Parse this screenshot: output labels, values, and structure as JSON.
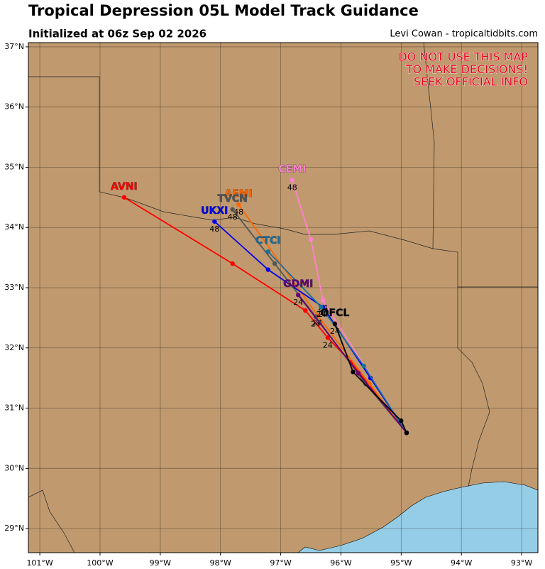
{
  "chart_data": {
    "type": "line",
    "title": "Tropical Depression 05L Model Track Guidance",
    "subtitle": "Initialized at 06z Sep 02 2026",
    "credit": "Levi Cowan - tropicaltidbits.com",
    "warning": [
      "DO NOT USE THIS MAP",
      "TO MAKE DECISIONS!",
      "SEEK OFFICIAL INFO"
    ],
    "xlim": [
      -101.19,
      -92.73
    ],
    "ylim": [
      28.6,
      37.07
    ],
    "xticks": [
      {
        "value": -101,
        "label": "101°W"
      },
      {
        "value": -100,
        "label": "100°W"
      },
      {
        "value": -99,
        "label": "99°W"
      },
      {
        "value": -98,
        "label": "98°W"
      },
      {
        "value": -97,
        "label": "97°W"
      },
      {
        "value": -96,
        "label": "96°W"
      },
      {
        "value": -95,
        "label": "95°W"
      },
      {
        "value": -94,
        "label": "94°W"
      },
      {
        "value": -93,
        "label": "93°W"
      }
    ],
    "yticks": [
      {
        "value": 29,
        "label": "29°N"
      },
      {
        "value": 30,
        "label": "30°N"
      },
      {
        "value": 31,
        "label": "31°N"
      },
      {
        "value": 32,
        "label": "32°N"
      },
      {
        "value": 33,
        "label": "33°N"
      },
      {
        "value": 34,
        "label": "34°N"
      },
      {
        "value": 35,
        "label": "35°N"
      },
      {
        "value": 36,
        "label": "36°N"
      },
      {
        "value": 37,
        "label": "37°N"
      }
    ],
    "grid": true,
    "series": [
      {
        "name": "AVNI",
        "color": "#ff0000",
        "x": [
          -94.91,
          -95.83,
          -96.22,
          -96.59,
          -97.8,
          -99.6
        ],
        "y": [
          30.59,
          31.76,
          32.17,
          32.62,
          33.4,
          34.5
        ],
        "point_labels": [
          null,
          null,
          "24",
          null,
          null,
          null
        ]
      },
      {
        "name": "CEMI",
        "color": "#ff80d0",
        "x": [
          -94.91,
          -96.3,
          -96.5,
          -96.81
        ],
        "y": [
          30.59,
          32.79,
          33.8,
          34.79
        ],
        "point_labels": [
          null,
          "24",
          null,
          "48"
        ]
      },
      {
        "name": "AEMI",
        "color": "#ff6600",
        "x": [
          -94.91,
          -95.53,
          -96.39,
          -97.7
        ],
        "y": [
          30.59,
          31.41,
          32.54,
          34.38
        ],
        "point_labels": [
          null,
          null,
          "24",
          "48"
        ]
      },
      {
        "name": "TVCN",
        "color": "#555555",
        "x": [
          -94.91,
          -95.59,
          -96.42,
          -97.1,
          -97.8
        ],
        "y": [
          30.59,
          31.4,
          32.52,
          33.4,
          34.3
        ],
        "point_labels": [
          null,
          null,
          "24",
          null,
          "48"
        ]
      },
      {
        "name": "UKXI",
        "color": "#0000ee",
        "x": [
          -94.91,
          -95.51,
          -96.3,
          -97.21,
          -98.1
        ],
        "y": [
          30.59,
          31.5,
          32.68,
          33.3,
          34.1
        ],
        "point_labels": [
          null,
          null,
          "24",
          null,
          "48"
        ]
      },
      {
        "name": "CTCI",
        "color": "#1a6e9e",
        "x": [
          -94.91,
          -95.62,
          -96.33,
          -97.21
        ],
        "y": [
          30.59,
          31.7,
          32.68,
          33.6
        ],
        "point_labels": [
          null,
          null,
          "24",
          null
        ]
      },
      {
        "name": "GDMI",
        "color": "#660077",
        "x": [
          -94.91,
          -95.71,
          -96.71
        ],
        "y": [
          30.59,
          31.58,
          32.88
        ],
        "point_labels": [
          null,
          null,
          "24"
        ]
      },
      {
        "name": "OFCL",
        "color": "#000000",
        "x": [
          -94.91,
          -95.0,
          -95.8,
          -96.1
        ],
        "y": [
          30.59,
          30.79,
          31.6,
          32.4
        ],
        "point_labels": [
          null,
          null,
          null,
          "24"
        ]
      }
    ]
  }
}
